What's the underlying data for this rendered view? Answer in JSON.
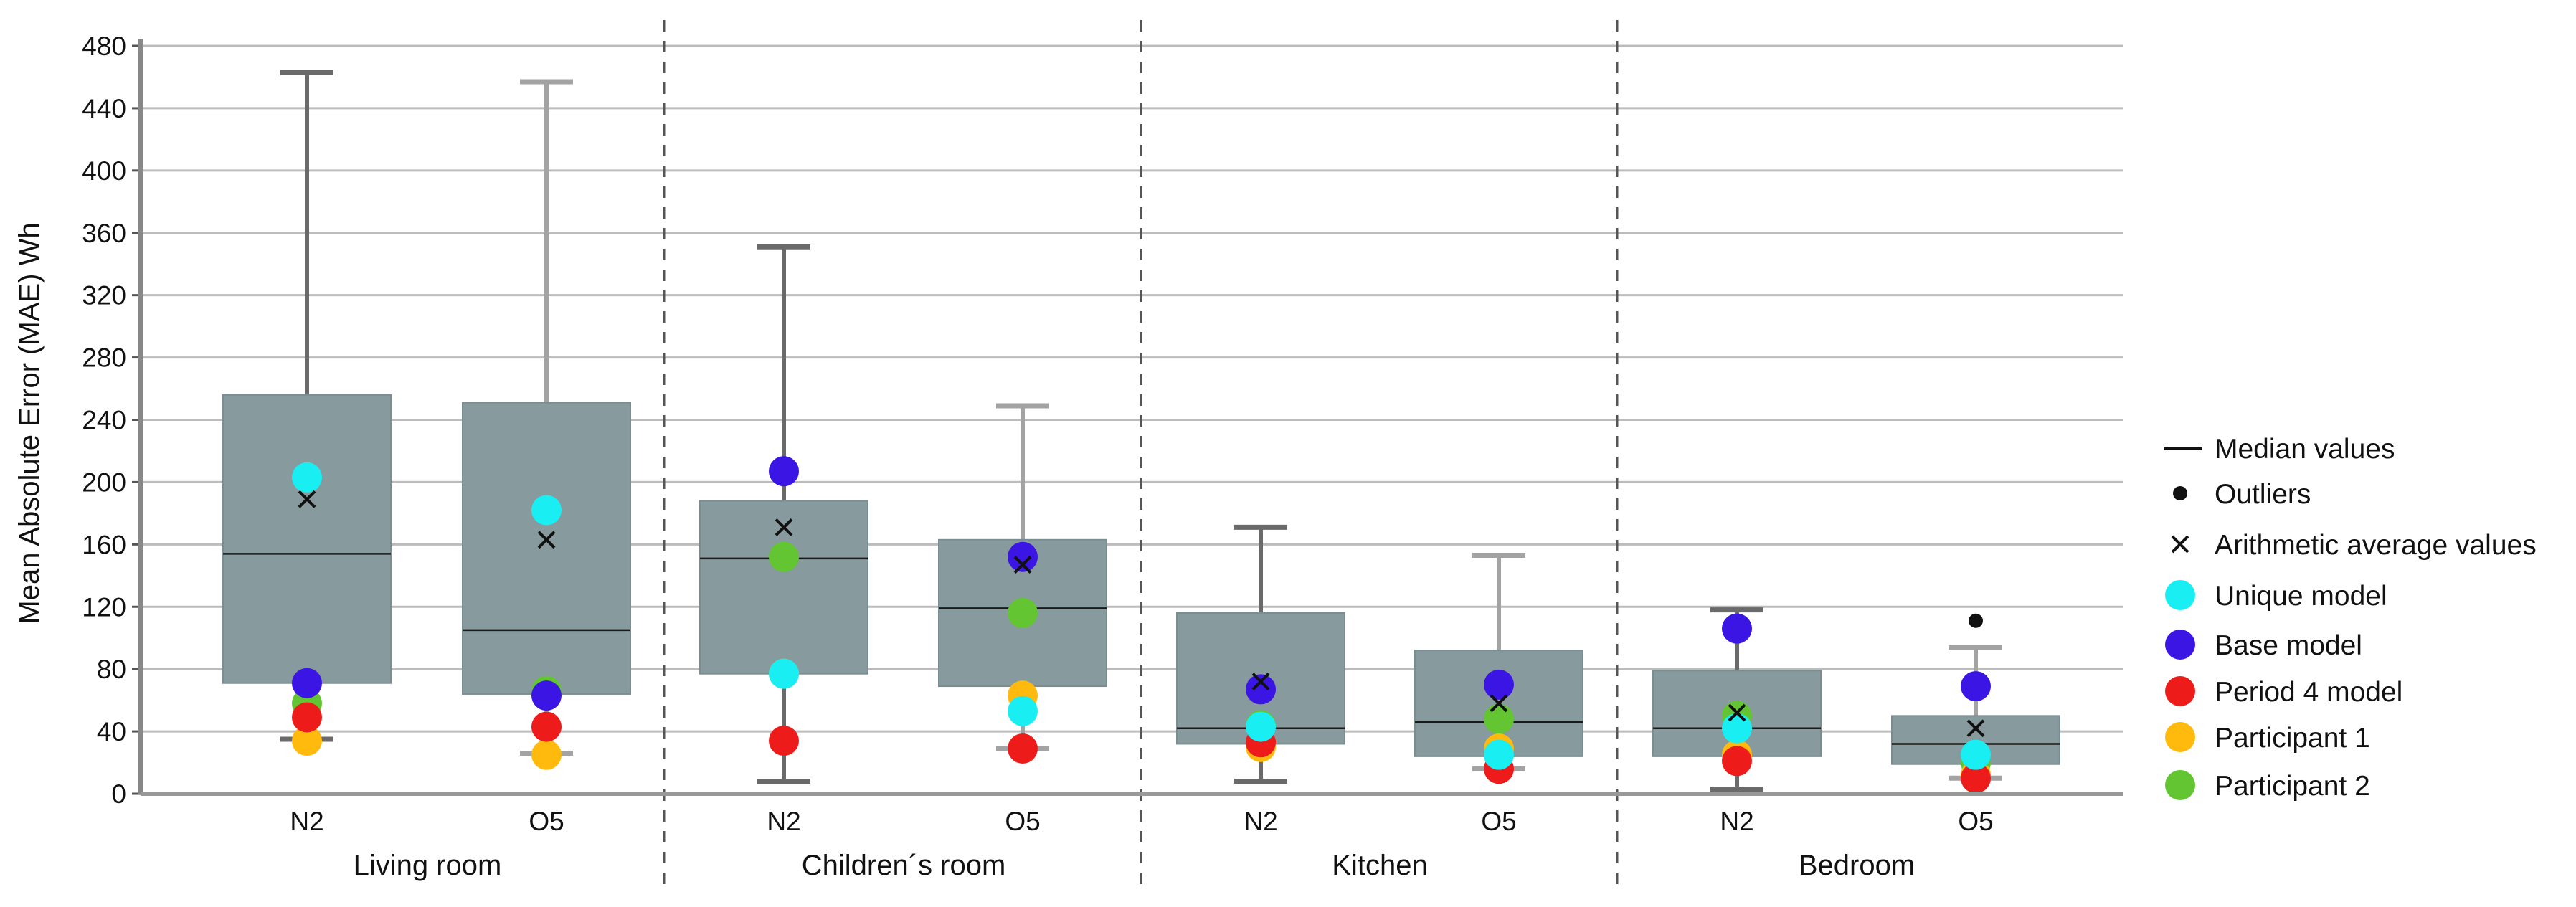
{
  "chart_data": {
    "type": "box",
    "title": "",
    "ylabel": "Mean Absolute Error (MAE) Wh",
    "xlabel": "",
    "ylim": [
      0,
      480
    ],
    "yticks": [
      0,
      40,
      80,
      120,
      160,
      200,
      240,
      280,
      320,
      360,
      400,
      440,
      480
    ],
    "grid": true,
    "legend_position": "right",
    "colors": {
      "box": "#879a9d",
      "whisker_dark": "#6a6a6a",
      "whisker_light": "#a3a3a3",
      "divider": "#555555",
      "grid": "#bcbcbc"
    },
    "legend": [
      {
        "label": "Median values",
        "marker": "line"
      },
      {
        "label": "Outliers",
        "marker": "dot"
      },
      {
        "label": "Arithmetic average values",
        "marker": "x"
      },
      {
        "label": "Unique model",
        "marker": "circle",
        "color": "#19eef2"
      },
      {
        "label": "Base model",
        "marker": "circle",
        "color": "#3a15e3"
      },
      {
        "label": "Period 4 model",
        "marker": "circle",
        "color": "#ee1b1b"
      },
      {
        "label": "Participant 1",
        "marker": "circle",
        "color": "#ffba0d"
      },
      {
        "label": "Participant 2",
        "marker": "circle",
        "color": "#62c531"
      }
    ],
    "groups": [
      {
        "name": "Living room",
        "categories": [
          {
            "label": "N2",
            "tone": "dark",
            "whisker_low": 35,
            "q1": 71,
            "median": 154,
            "q3": 256,
            "whisker_high": 463,
            "mean": 189,
            "outliers": [],
            "points": {
              "Unique model": 203,
              "Base model": 71,
              "Period 4 model": 49,
              "Participant 1": 34,
              "Participant 2": 58
            }
          },
          {
            "label": "O5",
            "tone": "light",
            "whisker_low": 26,
            "q1": 64,
            "median": 105,
            "q3": 251,
            "whisker_high": 457,
            "mean": 163,
            "outliers": [],
            "points": {
              "Unique model": 182,
              "Base model": 63,
              "Period 4 model": 43,
              "Participant 1": 25,
              "Participant 2": 66
            }
          }
        ]
      },
      {
        "name": "Children´s room",
        "categories": [
          {
            "label": "N2",
            "tone": "dark",
            "whisker_low": 8,
            "q1": 77,
            "median": 151,
            "q3": 188,
            "whisker_high": 351,
            "mean": 171,
            "outliers": [],
            "points": {
              "Unique model": 77,
              "Base model": 207,
              "Period 4 model": 34,
              "Participant 1": 77,
              "Participant 2": 152
            }
          },
          {
            "label": "O5",
            "tone": "light",
            "whisker_low": 29,
            "q1": 69,
            "median": 119,
            "q3": 163,
            "whisker_high": 249,
            "mean": 147,
            "outliers": [],
            "points": {
              "Unique model": 53,
              "Base model": 152,
              "Period 4 model": 29,
              "Participant 1": 63,
              "Participant 2": 116
            }
          }
        ]
      },
      {
        "name": "Kitchen",
        "categories": [
          {
            "label": "N2",
            "tone": "dark",
            "whisker_low": 8,
            "q1": 32,
            "median": 42,
            "q3": 116,
            "whisker_high": 171,
            "mean": 72,
            "outliers": [],
            "points": {
              "Unique model": 43,
              "Base model": 67,
              "Period 4 model": 33,
              "Participant 1": 30,
              "Participant 2": 44
            }
          },
          {
            "label": "O5",
            "tone": "light",
            "whisker_low": 16,
            "q1": 24,
            "median": 46,
            "q3": 92,
            "whisker_high": 153,
            "mean": 58,
            "outliers": [],
            "points": {
              "Unique model": 25,
              "Base model": 70,
              "Period 4 model": 16,
              "Participant 1": 29,
              "Participant 2": 48
            }
          }
        ]
      },
      {
        "name": "Bedroom",
        "categories": [
          {
            "label": "N2",
            "tone": "dark",
            "whisker_low": 3,
            "q1": 24,
            "median": 42,
            "q3": 79,
            "whisker_high": 118,
            "mean": 52,
            "outliers": [],
            "points": {
              "Unique model": 42,
              "Base model": 106,
              "Period 4 model": 21,
              "Participant 1": 25,
              "Participant 2": 50
            }
          },
          {
            "label": "O5",
            "tone": "light",
            "whisker_low": 10,
            "q1": 19,
            "median": 32,
            "q3": 50,
            "whisker_high": 94,
            "mean": 42,
            "outliers": [
              111
            ],
            "points": {
              "Unique model": 25,
              "Base model": 69,
              "Period 4 model": 10,
              "Participant 1": 12,
              "Participant 2": 20
            }
          }
        ]
      }
    ]
  }
}
